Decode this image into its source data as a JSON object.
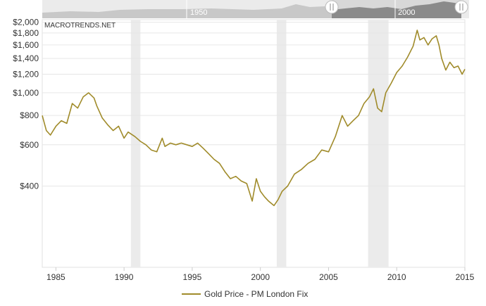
{
  "watermark": "MACROTRENDS.NET",
  "navigator": {
    "labels": [
      "1950",
      "2000"
    ]
  },
  "legend": {
    "label": "Gold Price - PM London Fix"
  },
  "colors": {
    "series": "#a08b2a",
    "recession": "#ebebeb",
    "grid": "#e6e6e6",
    "navigator_light": "#c8c8c8",
    "navigator_dark": "#8a8a8a"
  },
  "chart_data": {
    "type": "line",
    "yscale": "log",
    "ylim": [
      180,
      2050
    ],
    "xlim": [
      1984.0,
      2015.0
    ],
    "grid": true,
    "legend_position": "bottom-center",
    "x_ticks": [
      1985,
      1990,
      1995,
      2000,
      2005,
      2010,
      2015
    ],
    "x_tick_labels": [
      "1985",
      "1990",
      "1995",
      "2000",
      "2005",
      "2010",
      "2015"
    ],
    "y_ticks": [
      400,
      600,
      800,
      1000,
      1200,
      1400,
      1600,
      1800,
      2000
    ],
    "y_tick_labels": [
      "$400",
      "$600",
      "$800",
      "$1,000",
      "$1,200",
      "$1,400",
      "$1,600",
      "$1,800",
      "$2,000"
    ],
    "recessions": [
      [
        1990.5,
        1991.2
      ],
      [
        2001.2,
        2001.9
      ],
      [
        2007.9,
        2009.4
      ]
    ],
    "series": [
      {
        "name": "Gold Price - PM London Fix",
        "x": [
          1984.0,
          1984.3,
          1984.6,
          1985.0,
          1985.4,
          1985.8,
          1986.2,
          1986.6,
          1987.0,
          1987.4,
          1987.8,
          1988.0,
          1988.4,
          1988.8,
          1989.2,
          1989.6,
          1990.0,
          1990.3,
          1990.8,
          1991.2,
          1991.6,
          1992.0,
          1992.4,
          1992.8,
          1993.0,
          1993.4,
          1993.8,
          1994.2,
          1994.6,
          1995.0,
          1995.4,
          1995.8,
          1996.2,
          1996.6,
          1997.0,
          1997.4,
          1997.8,
          1998.2,
          1998.6,
          1999.0,
          1999.4,
          1999.7,
          2000.0,
          2000.3,
          2000.6,
          2001.0,
          2001.3,
          2001.6,
          2002.0,
          2002.5,
          2003.0,
          2003.5,
          2004.0,
          2004.5,
          2005.0,
          2005.5,
          2006.0,
          2006.4,
          2006.8,
          2007.2,
          2007.6,
          2008.0,
          2008.3,
          2008.6,
          2008.9,
          2009.2,
          2009.6,
          2010.0,
          2010.4,
          2010.8,
          2011.2,
          2011.5,
          2011.7,
          2012.0,
          2012.3,
          2012.6,
          2012.9,
          2013.1,
          2013.3,
          2013.6,
          2013.9,
          2014.2,
          2014.5,
          2014.8,
          2015.0
        ],
        "y": [
          800,
          690,
          660,
          720,
          760,
          740,
          900,
          860,
          960,
          1000,
          950,
          880,
          780,
          730,
          690,
          720,
          640,
          680,
          650,
          620,
          600,
          570,
          560,
          640,
          590,
          610,
          600,
          610,
          600,
          590,
          610,
          580,
          550,
          520,
          500,
          460,
          430,
          440,
          420,
          410,
          345,
          430,
          380,
          360,
          345,
          330,
          350,
          380,
          400,
          450,
          470,
          500,
          520,
          570,
          560,
          650,
          800,
          720,
          760,
          800,
          900,
          960,
          1040,
          860,
          830,
          1000,
          1100,
          1220,
          1300,
          1420,
          1580,
          1850,
          1680,
          1720,
          1600,
          1700,
          1750,
          1600,
          1400,
          1250,
          1350,
          1280,
          1300,
          1200,
          1260
        ]
      }
    ]
  }
}
